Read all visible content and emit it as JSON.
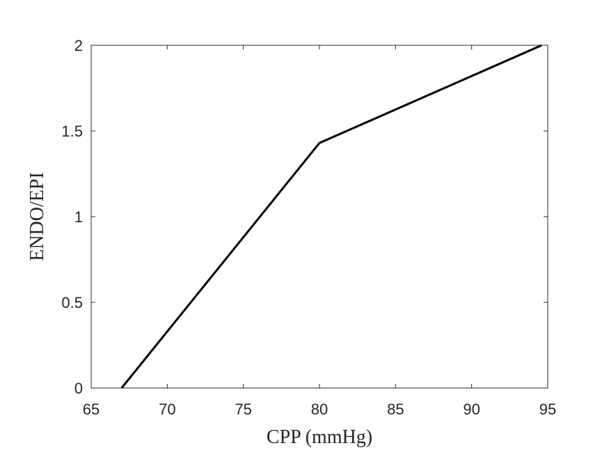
{
  "chart_data": {
    "type": "line",
    "title": "",
    "xlabel": "CPP (mmHg)",
    "ylabel": "ENDO/EPI",
    "xlim": [
      65,
      95
    ],
    "ylim": [
      0,
      2
    ],
    "xticks": [
      65,
      70,
      75,
      80,
      85,
      90,
      95
    ],
    "yticks": [
      0,
      0.5,
      1,
      1.5,
      2
    ],
    "xtick_labels": [
      "65",
      "70",
      "75",
      "80",
      "85",
      "90",
      "95"
    ],
    "ytick_labels": [
      "0",
      "0.5",
      "1",
      "1.5",
      "2"
    ],
    "grid": false,
    "legend": "none",
    "series": [
      {
        "color": "#000000",
        "x": [
          67.0,
          80.0,
          94.6
        ],
        "y": [
          0.0,
          1.43,
          2.0
        ]
      }
    ]
  }
}
